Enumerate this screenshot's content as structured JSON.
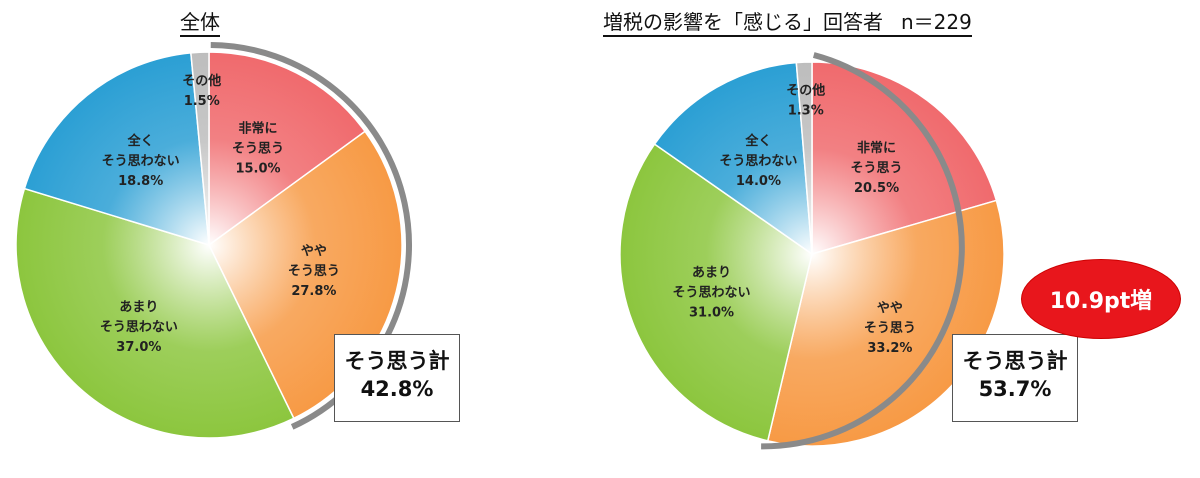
{
  "charts": [
    {
      "title": "全体",
      "total_label": "そう思う計",
      "total_value": "42.8%"
    },
    {
      "title": "増税の影響を「感じる」回答者",
      "n_label": "n＝229",
      "total_label": "そう思う計",
      "total_value": "53.7%"
    }
  ],
  "badge": "10.9pt増",
  "chart_data": [
    {
      "type": "pie",
      "title": "全体",
      "slices": [
        {
          "label": [
            "非常に",
            "そう思う"
          ],
          "value": 15.0,
          "value_label": "15.0%",
          "color": "#f06a6d"
        },
        {
          "label": [
            "やや",
            "そう思う"
          ],
          "value": 27.8,
          "value_label": "27.8%",
          "color": "#f79a45"
        },
        {
          "label": [
            "あまり",
            "そう思わない"
          ],
          "value": 37.0,
          "value_label": "37.0%",
          "color": "#8cc63e"
        },
        {
          "label": [
            "全く",
            "そう思わない"
          ],
          "value": 18.8,
          "value_label": "18.8%",
          "color": "#2b9fd4"
        },
        {
          "label": [
            "その他"
          ],
          "value": 1.5,
          "value_label": "1.5%",
          "color": "#bdbdbd"
        }
      ]
    },
    {
      "type": "pie",
      "title": "増税の影響を「感じる」回答者",
      "slices": [
        {
          "label": [
            "非常に",
            "そう思う"
          ],
          "value": 20.5,
          "value_label": "20.5%",
          "color": "#f06a6d"
        },
        {
          "label": [
            "やや",
            "そう思う"
          ],
          "value": 33.2,
          "value_label": "33.2%",
          "color": "#f79a45"
        },
        {
          "label": [
            "あまり",
            "そう思わない"
          ],
          "value": 31.0,
          "value_label": "31.0%",
          "color": "#8cc63e"
        },
        {
          "label": [
            "全く",
            "そう思わない"
          ],
          "value": 14.0,
          "value_label": "14.0%",
          "color": "#2b9fd4"
        },
        {
          "label": [
            "その他"
          ],
          "value": 1.3,
          "value_label": "1.3%",
          "color": "#bdbdbd"
        }
      ]
    }
  ]
}
